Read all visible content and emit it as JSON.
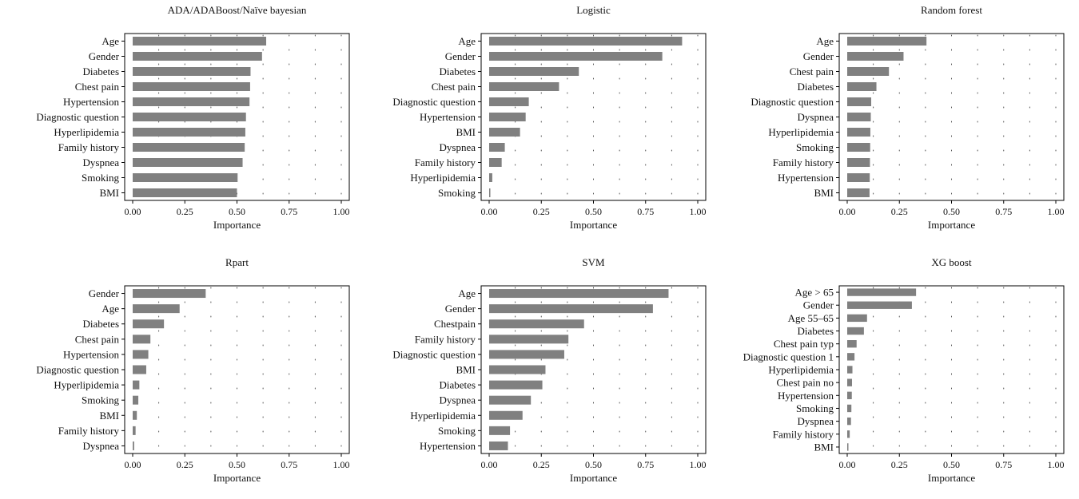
{
  "colors": {
    "bar": "#808080",
    "frame": "#000000",
    "grid_dots": "#555555"
  },
  "chart_data": [
    {
      "type": "bar",
      "orientation": "horizontal",
      "title": "ADA/ADABoost/Naïve bayesian",
      "categories": [
        "Age",
        "Gender",
        "Diabetes",
        "Chest pain",
        "Hypertension",
        "Diagnostic question",
        "Hyperlipidemia",
        "Family history",
        "Dyspnea",
        "Smoking",
        "BMI"
      ],
      "values": [
        0.64,
        0.62,
        0.565,
        0.563,
        0.56,
        0.543,
        0.54,
        0.537,
        0.527,
        0.503,
        0.5
      ],
      "xlabel": "Importance",
      "xlim": [
        0,
        1
      ],
      "xticks": [
        "0.00",
        "0.25",
        "0.50",
        "0.75",
        "1.00"
      ],
      "grid": true
    },
    {
      "type": "bar",
      "orientation": "horizontal",
      "title": "Logistic",
      "categories": [
        "Age",
        "Gender",
        "Diabetes",
        "Chest pain",
        "Diagnostic question",
        "Hypertension",
        "BMI",
        "Dyspnea",
        "Family history",
        "Hyperlipidemia",
        "Smoking"
      ],
      "values": [
        0.925,
        0.83,
        0.43,
        0.335,
        0.19,
        0.175,
        0.148,
        0.075,
        0.06,
        0.015,
        0.003
      ],
      "xlabel": "Importance",
      "xlim": [
        0,
        1
      ],
      "xticks": [
        "0.00",
        "0.25",
        "0.50",
        "0.75",
        "1.00"
      ],
      "grid": true
    },
    {
      "type": "bar",
      "orientation": "horizontal",
      "title": "Random forest",
      "categories": [
        "Age",
        "Gender",
        "Chest pain",
        "Diabetes",
        "Diagnostic question",
        "Dyspnea",
        "Hyperlipidemia",
        "Smoking",
        "Family history",
        "Hypertension",
        "BMI"
      ],
      "values": [
        0.38,
        0.27,
        0.2,
        0.14,
        0.115,
        0.113,
        0.111,
        0.11,
        0.109,
        0.108,
        0.107
      ],
      "xlabel": "Importance",
      "xlim": [
        0,
        1
      ],
      "xticks": [
        "0.00",
        "0.25",
        "0.50",
        "0.75",
        "1.00"
      ],
      "grid": true
    },
    {
      "type": "bar",
      "orientation": "horizontal",
      "title": "Rpart",
      "categories": [
        "Gender",
        "Age",
        "Diabetes",
        "Chest pain",
        "Hypertension",
        "Diagnostic question",
        "Hyperlipidemia",
        "Smoking",
        "BMI",
        "Family history",
        "Dyspnea"
      ],
      "values": [
        0.35,
        0.225,
        0.15,
        0.085,
        0.075,
        0.065,
        0.032,
        0.027,
        0.02,
        0.014,
        0.007
      ],
      "xlabel": "Importance",
      "xlim": [
        0,
        1
      ],
      "xticks": [
        "0.00",
        "0.25",
        "0.50",
        "0.75",
        "1.00"
      ],
      "grid": true
    },
    {
      "type": "bar",
      "orientation": "horizontal",
      "title": "SVM",
      "categories": [
        "Age",
        "Gender",
        "Chestpain",
        "Family history",
        "Diagnostic question",
        "BMI",
        "Diabetes",
        "Dyspnea",
        "Hyperlipidemia",
        "Smoking",
        "Hypertension"
      ],
      "values": [
        0.86,
        0.785,
        0.455,
        0.38,
        0.36,
        0.27,
        0.255,
        0.2,
        0.16,
        0.1,
        0.09
      ],
      "xlabel": "Importance",
      "xlim": [
        0,
        1
      ],
      "xticks": [
        "0.00",
        "0.25",
        "0.50",
        "0.75",
        "1.00"
      ],
      "grid": true
    },
    {
      "type": "bar",
      "orientation": "horizontal",
      "title": "XG boost",
      "categories": [
        "Age > 65",
        "Gender",
        "Age 55–65",
        "Diabetes",
        "Chest pain typ",
        "Diagnostic question 1",
        "Hyperlipidemia",
        "Chest pain no",
        "Hypertension",
        "Smoking",
        "Dyspnea",
        "Family history",
        "BMI"
      ],
      "values": [
        0.33,
        0.31,
        0.095,
        0.08,
        0.045,
        0.035,
        0.025,
        0.023,
        0.022,
        0.02,
        0.018,
        0.012,
        0.005
      ],
      "xlabel": "Importance",
      "xlim": [
        0,
        1
      ],
      "xticks": [
        "0.00",
        "0.25",
        "0.50",
        "0.75",
        "1.00"
      ],
      "grid": true
    }
  ]
}
